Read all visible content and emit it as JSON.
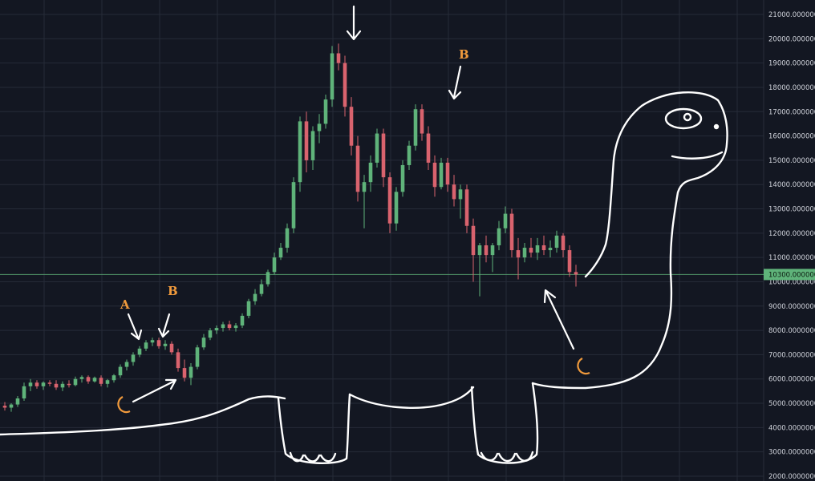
{
  "chart_data": {
    "type": "candlestick",
    "title": "",
    "xlabel": "",
    "ylabel": "",
    "ylim": [
      1900,
      21500
    ],
    "y_ticks": [
      "2000.0000000",
      "3000.0000000",
      "4000.0000000",
      "5000.0000000",
      "6000.0000000",
      "7000.0000000",
      "8000.0000000",
      "9000.0000000",
      "10000.000000",
      "11000.000000",
      "12000.000000",
      "13000.000000",
      "14000.000000",
      "15000.000000",
      "16000.000000",
      "17000.000000",
      "18000.000000",
      "19000.000000",
      "20000.000000",
      "21000.000000"
    ],
    "current_price": 10300,
    "current_price_label": "10300.000000",
    "grid": true,
    "up_color": "#5fb37a",
    "down_color": "#d9636e",
    "candles": [
      {
        "o": 4900,
        "h": 5050,
        "l": 4700,
        "c": 4820
      },
      {
        "o": 4820,
        "h": 5000,
        "l": 4650,
        "c": 4950
      },
      {
        "o": 4950,
        "h": 5300,
        "l": 4850,
        "c": 5200
      },
      {
        "o": 5200,
        "h": 5850,
        "l": 5100,
        "c": 5700
      },
      {
        "o": 5700,
        "h": 6000,
        "l": 5500,
        "c": 5850
      },
      {
        "o": 5850,
        "h": 5950,
        "l": 5600,
        "c": 5700
      },
      {
        "o": 5700,
        "h": 5900,
        "l": 5550,
        "c": 5850
      },
      {
        "o": 5850,
        "h": 5950,
        "l": 5700,
        "c": 5800
      },
      {
        "o": 5800,
        "h": 5950,
        "l": 5550,
        "c": 5650
      },
      {
        "o": 5650,
        "h": 5900,
        "l": 5500,
        "c": 5800
      },
      {
        "o": 5800,
        "h": 5950,
        "l": 5650,
        "c": 5750
      },
      {
        "o": 5750,
        "h": 6100,
        "l": 5700,
        "c": 6000
      },
      {
        "o": 6000,
        "h": 6150,
        "l": 5850,
        "c": 6080
      },
      {
        "o": 6080,
        "h": 6150,
        "l": 5800,
        "c": 5900
      },
      {
        "o": 5900,
        "h": 6100,
        "l": 5850,
        "c": 6050
      },
      {
        "o": 6050,
        "h": 6150,
        "l": 5700,
        "c": 5800
      },
      {
        "o": 5800,
        "h": 6000,
        "l": 5650,
        "c": 5950
      },
      {
        "o": 5950,
        "h": 6200,
        "l": 5850,
        "c": 6150
      },
      {
        "o": 6150,
        "h": 6600,
        "l": 6050,
        "c": 6500
      },
      {
        "o": 6500,
        "h": 6800,
        "l": 6350,
        "c": 6700
      },
      {
        "o": 6700,
        "h": 7100,
        "l": 6550,
        "c": 7000
      },
      {
        "o": 7000,
        "h": 7350,
        "l": 6900,
        "c": 7250
      },
      {
        "o": 7250,
        "h": 7600,
        "l": 7150,
        "c": 7500
      },
      {
        "o": 7500,
        "h": 7700,
        "l": 7350,
        "c": 7600
      },
      {
        "o": 7600,
        "h": 7700,
        "l": 7250,
        "c": 7350
      },
      {
        "o": 7350,
        "h": 7600,
        "l": 7200,
        "c": 7450
      },
      {
        "o": 7450,
        "h": 7550,
        "l": 7000,
        "c": 7100
      },
      {
        "o": 7100,
        "h": 7250,
        "l": 6300,
        "c": 6450
      },
      {
        "o": 6450,
        "h": 6800,
        "l": 5900,
        "c": 6050
      },
      {
        "o": 6050,
        "h": 6650,
        "l": 5750,
        "c": 6500
      },
      {
        "o": 6500,
        "h": 7400,
        "l": 6400,
        "c": 7300
      },
      {
        "o": 7300,
        "h": 7850,
        "l": 7200,
        "c": 7700
      },
      {
        "o": 7700,
        "h": 8100,
        "l": 7600,
        "c": 8000
      },
      {
        "o": 8000,
        "h": 8200,
        "l": 7850,
        "c": 8100
      },
      {
        "o": 8100,
        "h": 8350,
        "l": 7950,
        "c": 8250
      },
      {
        "o": 8250,
        "h": 8400,
        "l": 8000,
        "c": 8100
      },
      {
        "o": 8100,
        "h": 8300,
        "l": 7950,
        "c": 8200
      },
      {
        "o": 8200,
        "h": 8700,
        "l": 8100,
        "c": 8600
      },
      {
        "o": 8600,
        "h": 9300,
        "l": 8500,
        "c": 9200
      },
      {
        "o": 9200,
        "h": 9700,
        "l": 9050,
        "c": 9500
      },
      {
        "o": 9500,
        "h": 10100,
        "l": 9400,
        "c": 9900
      },
      {
        "o": 9900,
        "h": 10500,
        "l": 9800,
        "c": 10400
      },
      {
        "o": 10400,
        "h": 11200,
        "l": 10300,
        "c": 11000
      },
      {
        "o": 11000,
        "h": 11600,
        "l": 10900,
        "c": 11400
      },
      {
        "o": 11400,
        "h": 12400,
        "l": 11200,
        "c": 12200
      },
      {
        "o": 12200,
        "h": 14300,
        "l": 12000,
        "c": 14100
      },
      {
        "o": 14100,
        "h": 16800,
        "l": 13700,
        "c": 16600
      },
      {
        "o": 16600,
        "h": 17000,
        "l": 14500,
        "c": 15000
      },
      {
        "o": 15000,
        "h": 16400,
        "l": 14600,
        "c": 16200
      },
      {
        "o": 16200,
        "h": 16900,
        "l": 15700,
        "c": 16500
      },
      {
        "o": 16500,
        "h": 17700,
        "l": 16300,
        "c": 17500
      },
      {
        "o": 17500,
        "h": 19700,
        "l": 17200,
        "c": 19400
      },
      {
        "o": 19400,
        "h": 19800,
        "l": 18700,
        "c": 19000
      },
      {
        "o": 19000,
        "h": 19300,
        "l": 16800,
        "c": 17200
      },
      {
        "o": 17200,
        "h": 17600,
        "l": 15200,
        "c": 15600
      },
      {
        "o": 15600,
        "h": 16000,
        "l": 13300,
        "c": 13700
      },
      {
        "o": 13700,
        "h": 14400,
        "l": 12200,
        "c": 14100
      },
      {
        "o": 14100,
        "h": 15200,
        "l": 13700,
        "c": 14900
      },
      {
        "o": 14900,
        "h": 16300,
        "l": 14700,
        "c": 16100
      },
      {
        "o": 16100,
        "h": 16300,
        "l": 13900,
        "c": 14300
      },
      {
        "o": 14300,
        "h": 14500,
        "l": 12000,
        "c": 12400
      },
      {
        "o": 12400,
        "h": 13900,
        "l": 12100,
        "c": 13700
      },
      {
        "o": 13700,
        "h": 15000,
        "l": 13500,
        "c": 14800
      },
      {
        "o": 14800,
        "h": 15800,
        "l": 14600,
        "c": 15600
      },
      {
        "o": 15600,
        "h": 17300,
        "l": 15400,
        "c": 17100
      },
      {
        "o": 17100,
        "h": 17300,
        "l": 15800,
        "c": 16100
      },
      {
        "o": 16100,
        "h": 16400,
        "l": 14600,
        "c": 14900
      },
      {
        "o": 14900,
        "h": 15200,
        "l": 13500,
        "c": 13900
      },
      {
        "o": 13900,
        "h": 15100,
        "l": 13800,
        "c": 14900
      },
      {
        "o": 14900,
        "h": 15100,
        "l": 13700,
        "c": 14000
      },
      {
        "o": 14000,
        "h": 14400,
        "l": 13100,
        "c": 13400
      },
      {
        "o": 13400,
        "h": 14000,
        "l": 12600,
        "c": 13800
      },
      {
        "o": 13800,
        "h": 14000,
        "l": 12000,
        "c": 12300
      },
      {
        "o": 12300,
        "h": 12600,
        "l": 10000,
        "c": 11100
      },
      {
        "o": 11100,
        "h": 11600,
        "l": 9400,
        "c": 11500
      },
      {
        "o": 11500,
        "h": 11900,
        "l": 10800,
        "c": 11100
      },
      {
        "o": 11100,
        "h": 11600,
        "l": 10400,
        "c": 11500
      },
      {
        "o": 11500,
        "h": 12500,
        "l": 11300,
        "c": 12200
      },
      {
        "o": 12200,
        "h": 13100,
        "l": 12000,
        "c": 12800
      },
      {
        "o": 12800,
        "h": 13000,
        "l": 11000,
        "c": 11300
      },
      {
        "o": 11300,
        "h": 11800,
        "l": 10100,
        "c": 11000
      },
      {
        "o": 11000,
        "h": 11600,
        "l": 10800,
        "c": 11400
      },
      {
        "o": 11400,
        "h": 11800,
        "l": 11000,
        "c": 11200
      },
      {
        "o": 11200,
        "h": 11800,
        "l": 10900,
        "c": 11500
      },
      {
        "o": 11500,
        "h": 11900,
        "l": 11100,
        "c": 11300
      },
      {
        "o": 11300,
        "h": 11700,
        "l": 11000,
        "c": 11400
      },
      {
        "o": 11400,
        "h": 12100,
        "l": 11200,
        "c": 11900
      },
      {
        "o": 11900,
        "h": 12000,
        "l": 11000,
        "c": 11300
      },
      {
        "o": 11300,
        "h": 11500,
        "l": 10200,
        "c": 10400
      },
      {
        "o": 10400,
        "h": 10700,
        "l": 9800,
        "c": 10300
      }
    ],
    "annotations": {
      "letters": [
        {
          "label": "A",
          "color": "#f09a3c"
        },
        {
          "label": "B",
          "color": "#f09a3c"
        },
        {
          "label": "B",
          "color": "#f09a3c"
        }
      ],
      "moon_color": "#f09a3c",
      "drawing_color": "#ffffff"
    }
  }
}
